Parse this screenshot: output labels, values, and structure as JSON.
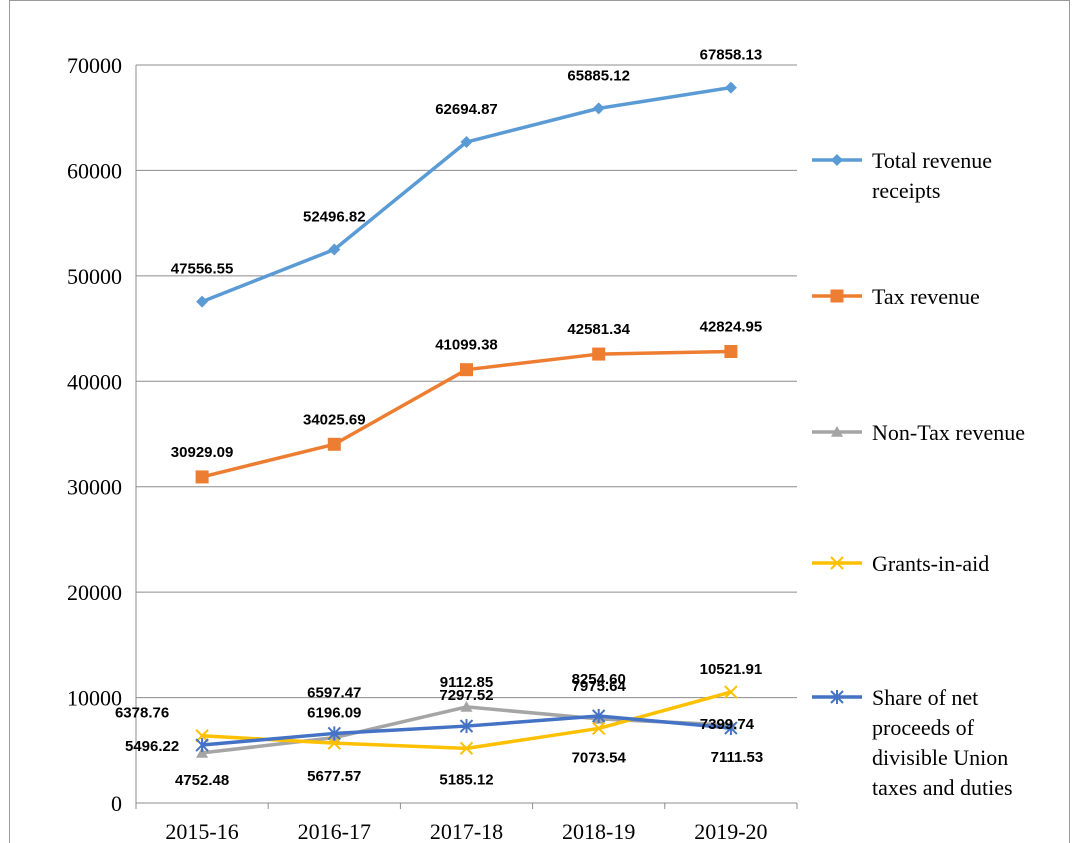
{
  "chart_data": {
    "type": "line",
    "title": "",
    "xlabel": "",
    "ylabel": "",
    "categories": [
      "2015-16",
      "2016-17",
      "2017-18",
      "2018-19",
      "2019-20"
    ],
    "ylim": [
      0,
      70000
    ],
    "yticks": [
      "0",
      "10000",
      "20000",
      "30000",
      "40000",
      "50000",
      "60000",
      "70000"
    ],
    "grid": "horizontal",
    "legend_position": "right",
    "series": [
      {
        "name": "Total revenue receipts",
        "legend_lines": [
          "Total revenue",
          "receipts"
        ],
        "color": "#5b9bd5",
        "marker": "diamond",
        "values": [
          47556.55,
          52496.82,
          62694.87,
          65885.12,
          67858.13
        ],
        "labels": [
          "47556.55",
          "52496.82",
          "62694.87",
          "65885.12",
          "67858.13"
        ]
      },
      {
        "name": "Tax revenue",
        "legend_lines": [
          "Tax revenue"
        ],
        "color": "#ed7d31",
        "marker": "square",
        "values": [
          30929.09,
          34025.69,
          41099.38,
          42581.34,
          42824.95
        ],
        "labels": [
          "30929.09",
          "34025.69",
          "41099.38",
          "42581.34",
          "42824.95"
        ]
      },
      {
        "name": "Non-Tax revenue",
        "legend_lines": [
          "Non-Tax revenue"
        ],
        "color": "#a5a5a5",
        "marker": "triangle",
        "values": [
          4752.48,
          6196.09,
          9112.85,
          7975.64,
          7399.74
        ],
        "labels": [
          "4752.48",
          "6196.09",
          "9112.85",
          "7975.64",
          "7399.74"
        ]
      },
      {
        "name": "Grants-in-aid",
        "legend_lines": [
          "Grants-in-aid"
        ],
        "color": "#ffc000",
        "marker": "x",
        "values": [
          6378.76,
          5677.57,
          5185.12,
          7073.54,
          10521.91
        ],
        "labels": [
          "6378.76",
          "5677.57",
          "5185.12",
          "7073.54",
          "10521.91"
        ]
      },
      {
        "name": "Share of net proceeds of divisible Union taxes and duties",
        "legend_lines": [
          "Share of net",
          "proceeds of",
          "divisible Union",
          "taxes and duties"
        ],
        "color": "#4472c4",
        "marker": "star",
        "values": [
          5496.22,
          6597.47,
          7297.52,
          8254.6,
          7111.53
        ],
        "labels": [
          "5496.22",
          "6597.47",
          "7297.52",
          "8254.60",
          "7111.53"
        ]
      }
    ]
  }
}
